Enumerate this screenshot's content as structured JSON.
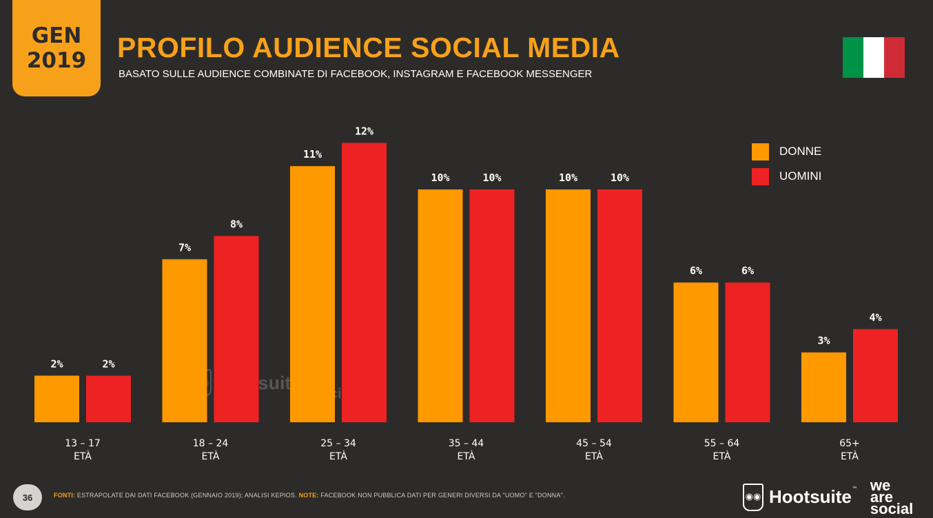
{
  "badge": {
    "line1": "GEN",
    "line2": "2019"
  },
  "title": "PROFILO AUDIENCE SOCIAL MEDIA",
  "subtitle": "BASATO SULLE AUDIENCE COMBINATE DI FACEBOOK, INSTAGRAM E FACEBOOK MESSENGER",
  "flag": {
    "colors": [
      "#009246",
      "#ffffff",
      "#ce2b37"
    ]
  },
  "colors": {
    "background": "#2d2b29",
    "accent": "#f7a11a",
    "donne": "#ff9900",
    "uomini": "#ee2222"
  },
  "chart_data": {
    "type": "bar",
    "categories": [
      "13 – 17",
      "18 – 24",
      "25 – 34",
      "35 – 44",
      "45 – 54",
      "55 – 64",
      "65+"
    ],
    "category_sublabel": "ETÀ",
    "series": [
      {
        "name": "DONNE",
        "color": "#ff9900",
        "values": [
          2,
          7,
          11,
          10,
          10,
          6,
          3
        ],
        "labels": [
          "2%",
          "7%",
          "11%",
          "10%",
          "10%",
          "6%",
          "3%"
        ]
      },
      {
        "name": "UOMINI",
        "color": "#ee2222",
        "values": [
          2,
          8,
          12,
          10,
          10,
          6,
          4
        ],
        "labels": [
          "2%",
          "8%",
          "12%",
          "10%",
          "10%",
          "6%",
          "4%"
        ]
      }
    ],
    "legend_position": "top-right",
    "grid": false
  },
  "watermark": {
    "text": "Hootsuite",
    "tm": "™",
    "partner": [
      "we",
      "are",
      "social"
    ]
  },
  "footer": {
    "page_number": "36",
    "fonti_key": "FONTI:",
    "fonti_text": " ESTRAPOLATE DAI DATI FACEBOOK (GENNAIO 2019); ANALISI KEPIOS. ",
    "note_key": "NOTE:",
    "note_text": " FACEBOOK NON PUBBLICA DATI PER GENERI DIVERSI DA \"UOMO\" E \"DONNA\".",
    "brand": "Hootsuite",
    "brand_tm": "™",
    "partner": [
      "we",
      "are",
      "social"
    ]
  }
}
